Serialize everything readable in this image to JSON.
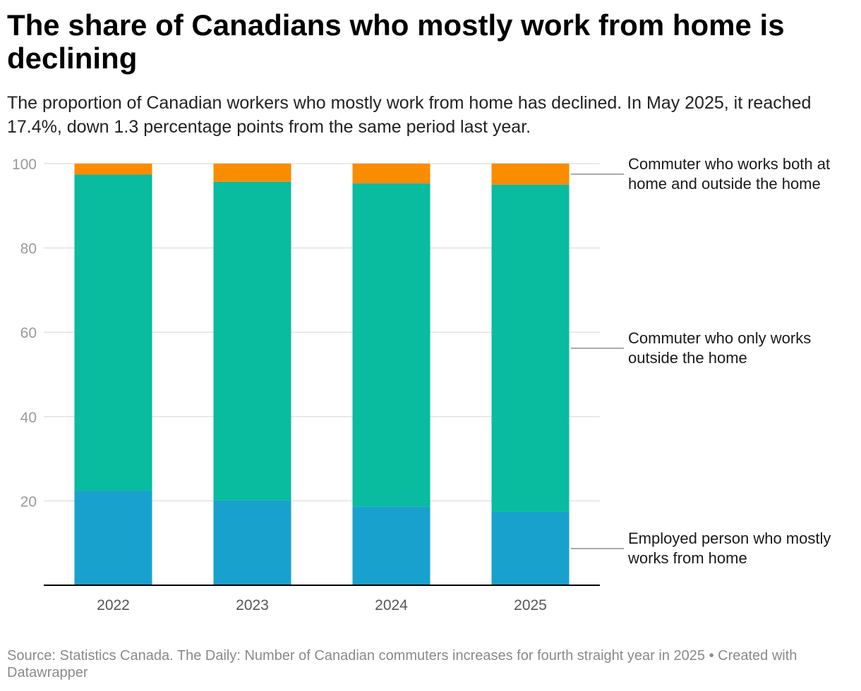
{
  "title": "The share of Canadians who mostly work from home is declining",
  "subtitle": "The proportion of Canadian workers who mostly work from home has declined. In May 2025, it reached 17.4%, down 1.3 percentage points from the same period last year.",
  "footer": {
    "source": "Source: Statistics Canada. The Daily: Number of Canadian commuters increases for fourth straight year in 2025",
    "separator": "•",
    "credit": "Created with Datawrapper"
  },
  "chart_data": {
    "type": "bar",
    "stacked": true,
    "categories": [
      "2022",
      "2023",
      "2024",
      "2025"
    ],
    "series": [
      {
        "name": "Employed person who mostly works from home",
        "color": "#18a1cd",
        "values": [
          22.4,
          20.1,
          18.7,
          17.4
        ]
      },
      {
        "name": "Commuter who only works outside the home",
        "color": "#09bb9f",
        "values": [
          75.0,
          75.6,
          76.6,
          77.6
        ]
      },
      {
        "name": "Commuter who works both at home and outside the home",
        "color": "#fa8c00",
        "values": [
          2.6,
          4.3,
          4.7,
          5.0
        ]
      }
    ],
    "ylim": [
      0,
      100
    ],
    "yticks": [
      0,
      20,
      40,
      60,
      80,
      100
    ],
    "ytick_labels": [
      "",
      "20",
      "40",
      "60",
      "80",
      "100"
    ],
    "xlabel": "",
    "ylabel": "",
    "grid": true,
    "legend": "direct labels on right"
  }
}
